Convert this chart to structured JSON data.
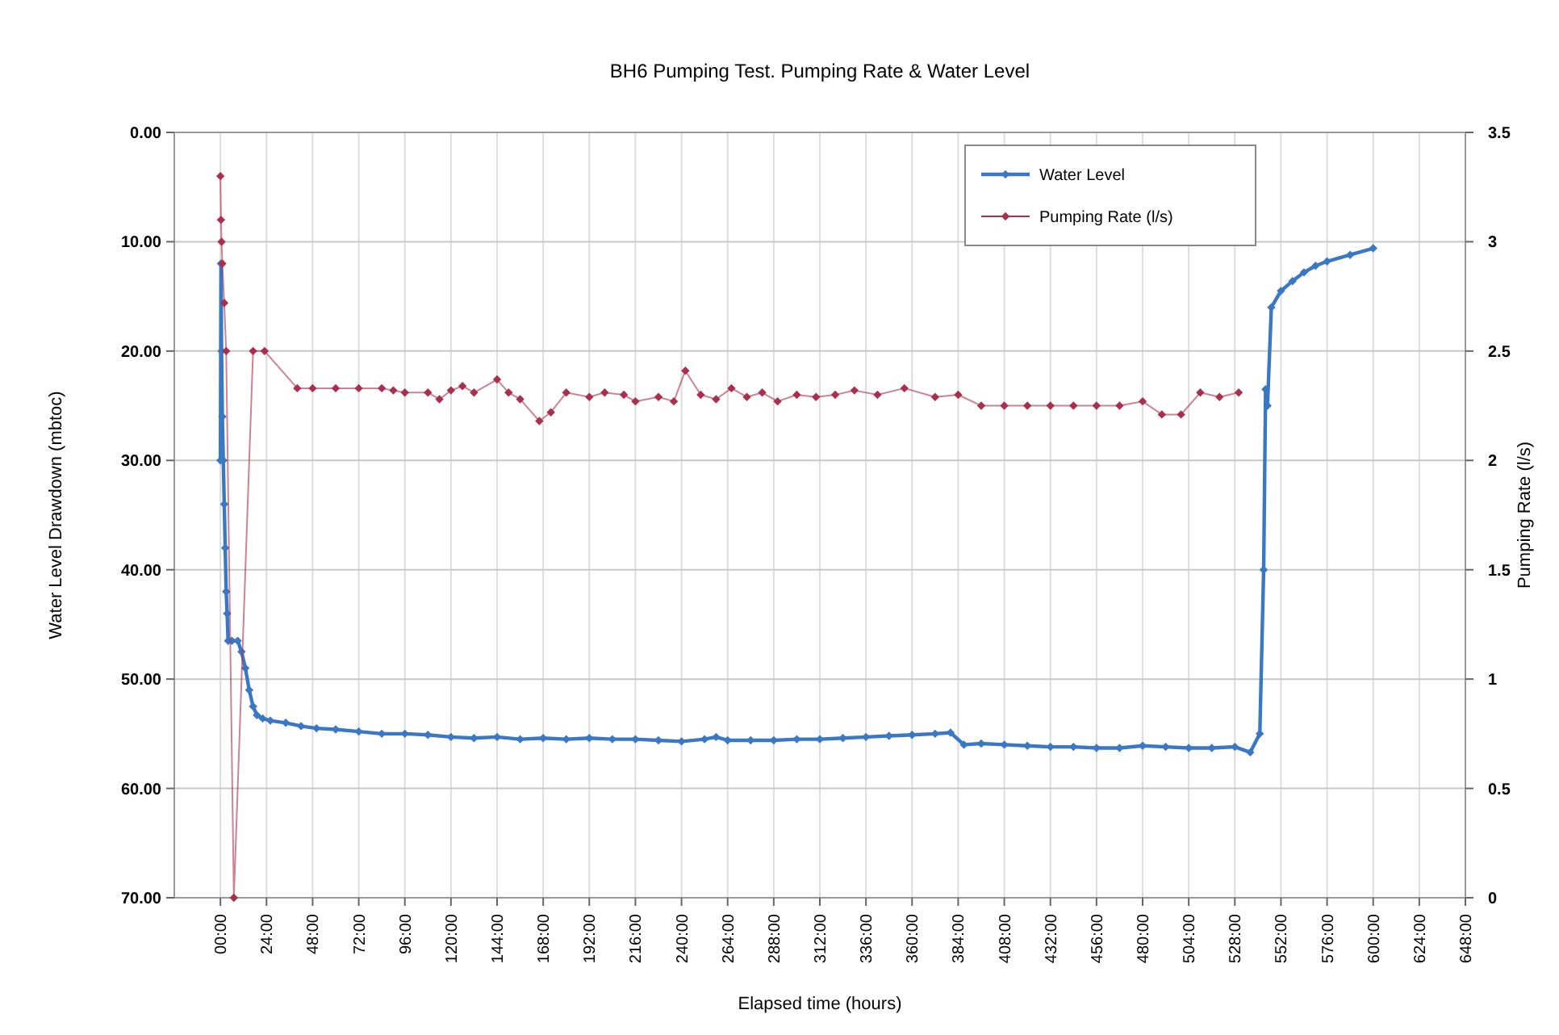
{
  "chart_data": {
    "type": "line",
    "title": "BH6 Pumping Test. Pumping Rate & Water Level",
    "xlabel": "Elapsed time (hours)",
    "ylabel": "Water Level Drawdown (mbtoc)",
    "y2label": "Pumping Rate (l/s)",
    "xlim": [
      -24,
      648
    ],
    "xticks": [
      {
        "value": 0,
        "label": "00:00"
      },
      {
        "value": 24,
        "label": "24:00"
      },
      {
        "value": 48,
        "label": "48:00"
      },
      {
        "value": 72,
        "label": "72:00"
      },
      {
        "value": 96,
        "label": "96:00"
      },
      {
        "value": 120,
        "label": "120:00"
      },
      {
        "value": 144,
        "label": "144:00"
      },
      {
        "value": 168,
        "label": "168:00"
      },
      {
        "value": 192,
        "label": "192:00"
      },
      {
        "value": 216,
        "label": "216:00"
      },
      {
        "value": 240,
        "label": "240:00"
      },
      {
        "value": 264,
        "label": "264:00"
      },
      {
        "value": 288,
        "label": "288:00"
      },
      {
        "value": 312,
        "label": "312:00"
      },
      {
        "value": 336,
        "label": "336:00"
      },
      {
        "value": 360,
        "label": "360:00"
      },
      {
        "value": 384,
        "label": "384:00"
      },
      {
        "value": 408,
        "label": "408:00"
      },
      {
        "value": 432,
        "label": "432:00"
      },
      {
        "value": 456,
        "label": "456:00"
      },
      {
        "value": 480,
        "label": "480:00"
      },
      {
        "value": 504,
        "label": "504:00"
      },
      {
        "value": 528,
        "label": "528:00"
      },
      {
        "value": 552,
        "label": "552:00"
      },
      {
        "value": 576,
        "label": "576:00"
      },
      {
        "value": 600,
        "label": "600:00"
      },
      {
        "value": 624,
        "label": "624:00"
      },
      {
        "value": 648,
        "label": "648:00"
      }
    ],
    "ylim": [
      70,
      0
    ],
    "yticks": [
      {
        "value": 0,
        "label": "0.00"
      },
      {
        "value": 10,
        "label": "10.00"
      },
      {
        "value": 20,
        "label": "20.00"
      },
      {
        "value": 30,
        "label": "30.00"
      },
      {
        "value": 40,
        "label": "40.00"
      },
      {
        "value": 50,
        "label": "50.00"
      },
      {
        "value": 60,
        "label": "60.00"
      },
      {
        "value": 70,
        "label": "70.00"
      }
    ],
    "y2lim": [
      0,
      3.5
    ],
    "y2ticks": [
      0,
      {
        "value": 0.5,
        "label": "0.5"
      },
      1,
      {
        "value": 1.5,
        "label": "1.5"
      },
      2,
      {
        "value": 2.5,
        "label": "2.5"
      },
      3,
      {
        "value": 3.5,
        "label": "3.5"
      }
    ],
    "grid": true,
    "legend": "top right",
    "marker": "diamond",
    "line_style": "solid",
    "series": [
      {
        "name": "Water Level",
        "color": "#3a78c4",
        "axis": "y",
        "x": [
          0,
          0.3,
          0.6,
          1,
          1.5,
          2,
          2.5,
          3,
          3.5,
          4,
          6,
          9,
          11,
          13,
          15,
          17,
          19,
          22,
          26,
          34,
          42,
          50,
          60,
          72,
          84,
          96,
          108,
          120,
          132,
          144,
          156,
          168,
          180,
          192,
          204,
          216,
          228,
          240,
          252,
          258,
          264,
          276,
          288,
          300,
          312,
          324,
          336,
          348,
          360,
          372,
          380,
          387,
          396,
          408,
          420,
          432,
          444,
          456,
          468,
          480,
          492,
          504,
          516,
          528,
          536,
          541,
          543,
          544,
          545,
          547,
          552,
          558,
          564,
          570,
          576,
          588,
          600
        ],
        "values": [
          30,
          12,
          20,
          26,
          30,
          34,
          38,
          42,
          44,
          46.5,
          46.5,
          46.5,
          47.5,
          49,
          51,
          52.5,
          53.3,
          53.6,
          53.8,
          54,
          54.3,
          54.5,
          54.6,
          54.8,
          55,
          55,
          55.1,
          55.3,
          55.4,
          55.3,
          55.5,
          55.4,
          55.5,
          55.4,
          55.5,
          55.5,
          55.6,
          55.7,
          55.5,
          55.3,
          55.6,
          55.6,
          55.6,
          55.5,
          55.5,
          55.4,
          55.3,
          55.2,
          55.1,
          55,
          54.9,
          56,
          55.9,
          56,
          56.1,
          56.2,
          56.2,
          56.3,
          56.3,
          56.1,
          56.2,
          56.3,
          56.3,
          56.2,
          56.7,
          55,
          40,
          23.5,
          25,
          16,
          14.5,
          13.6,
          12.8,
          12.2,
          11.8,
          11.2,
          10.6
        ]
      },
      {
        "name": "Pumping Rate (l/s)",
        "color": "#a8304e",
        "axis": "y2",
        "x": [
          0,
          0.3,
          0.6,
          1,
          2,
          3,
          7,
          17,
          23,
          40,
          48,
          60,
          72,
          84,
          90,
          96,
          108,
          114,
          120,
          126,
          132,
          144,
          150,
          156,
          166,
          172,
          180,
          192,
          200,
          210,
          216,
          228,
          236,
          242,
          250,
          258,
          266,
          274,
          282,
          290,
          300,
          310,
          320,
          330,
          342,
          356,
          372,
          384,
          396,
          408,
          420,
          432,
          444,
          456,
          468,
          480,
          490,
          500,
          510,
          520,
          530
        ],
        "values": [
          3.3,
          3.1,
          3.0,
          2.9,
          2.72,
          2.5,
          0,
          2.5,
          2.5,
          2.33,
          2.33,
          2.33,
          2.33,
          2.33,
          2.32,
          2.31,
          2.31,
          2.28,
          2.32,
          2.34,
          2.31,
          2.37,
          2.31,
          2.28,
          2.18,
          2.22,
          2.31,
          2.29,
          2.31,
          2.3,
          2.27,
          2.29,
          2.27,
          2.41,
          2.3,
          2.28,
          2.33,
          2.29,
          2.31,
          2.27,
          2.3,
          2.29,
          2.3,
          2.32,
          2.3,
          2.33,
          2.29,
          2.3,
          2.25,
          2.25,
          2.25,
          2.25,
          2.25,
          2.25,
          2.25,
          2.27,
          2.21,
          2.21,
          2.31,
          2.29,
          2.31
        ]
      }
    ]
  }
}
